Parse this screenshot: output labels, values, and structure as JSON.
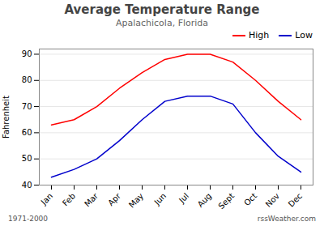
{
  "chart_data": {
    "type": "line",
    "title": "Average Temperature Range",
    "subtitle": "Apalachicola, Florida",
    "ylabel": "Fahrenheit",
    "categories": [
      "Jan",
      "Feb",
      "Mar",
      "Apr",
      "May",
      "Jun",
      "Jul",
      "Aug",
      "Sept",
      "Oct",
      "Nov",
      "Dec"
    ],
    "series": [
      {
        "name": "High",
        "color": "#ff0000",
        "values": [
          63,
          65,
          70,
          77,
          83,
          88,
          90,
          90,
          87,
          80,
          72,
          65
        ]
      },
      {
        "name": "Low",
        "color": "#0000cc",
        "values": [
          43,
          46,
          50,
          57,
          65,
          72,
          74,
          74,
          71,
          60,
          51,
          45
        ]
      }
    ],
    "ylim": [
      40,
      92
    ],
    "yticks": [
      40,
      50,
      60,
      70,
      80,
      90
    ],
    "grid": true,
    "legend": "upper right",
    "annotations": [
      "1971-2000",
      "rssWeather.com"
    ]
  }
}
